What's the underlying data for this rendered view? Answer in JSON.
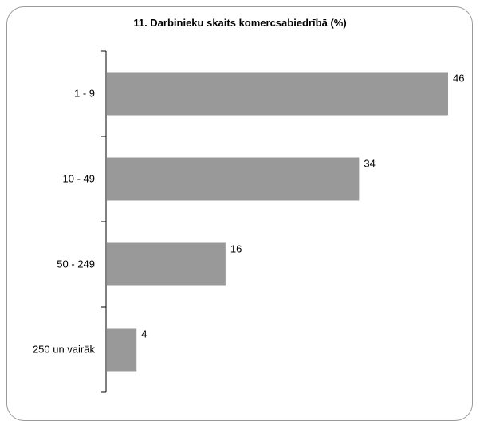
{
  "chart_data": {
    "type": "bar",
    "orientation": "horizontal",
    "title": "11. Darbinieku skaits komercsabiedrībā (%)",
    "categories": [
      "1 - 9",
      "10 - 49",
      "50 - 249",
      "250 un vairāk"
    ],
    "values": [
      46,
      34,
      16,
      4
    ],
    "xlim": [
      0,
      46
    ],
    "bar_color": "#999999",
    "grid": false,
    "legend": "none"
  }
}
